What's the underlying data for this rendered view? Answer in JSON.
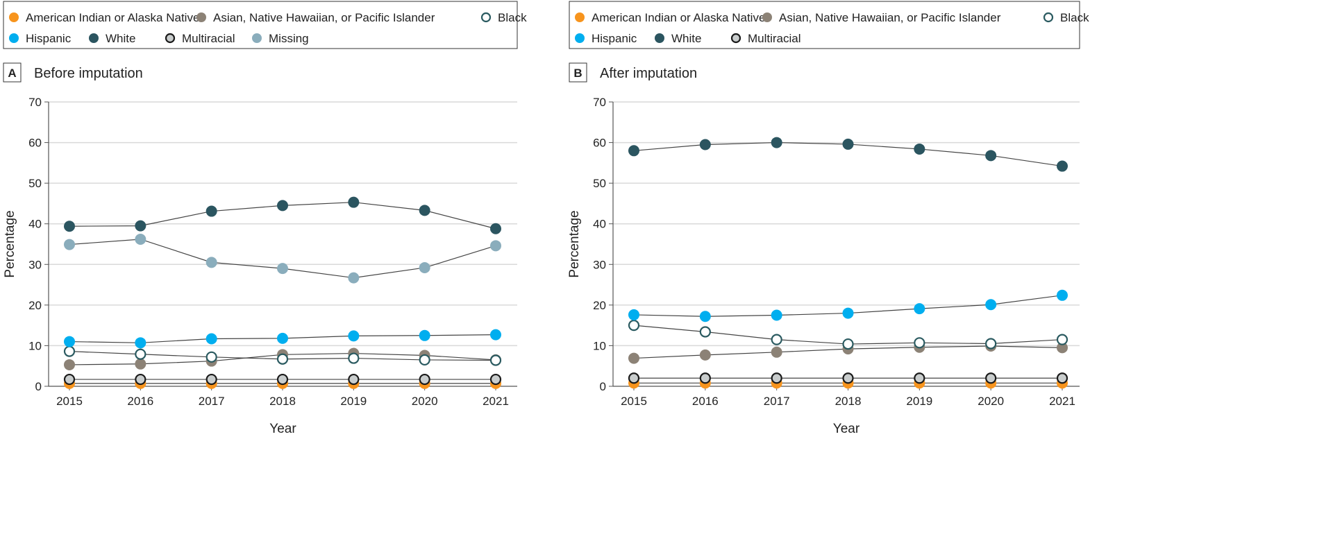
{
  "chart_data": [
    {
      "type": "line",
      "panel": "A",
      "title": "Before imputation",
      "xlabel": "Year",
      "ylabel": "Percentage",
      "x": [
        2015,
        2016,
        2017,
        2018,
        2019,
        2020,
        2021
      ],
      "ylim": [
        0,
        70
      ],
      "yticks": [
        0,
        10,
        20,
        30,
        40,
        50,
        60,
        70
      ],
      "grid": true,
      "legend_placement": "top",
      "series": [
        {
          "name": "American Indian or Alaska Native",
          "color": "#F7941D",
          "marker": "filled",
          "values": [
            0.7,
            0.7,
            0.7,
            0.7,
            0.7,
            0.7,
            0.7
          ]
        },
        {
          "name": "Asian, Native Hawaiian, or Pacific Islander",
          "color": "#8C8276",
          "marker": "filled",
          "values": [
            5.3,
            5.5,
            6.2,
            7.8,
            8.1,
            7.6,
            6.5
          ]
        },
        {
          "name": "Black",
          "color": "#2A5A60",
          "marker": "open",
          "values": [
            8.6,
            7.9,
            7.2,
            6.7,
            6.9,
            6.5,
            6.4
          ]
        },
        {
          "name": "Hispanic",
          "color": "#00AEEF",
          "marker": "filled",
          "values": [
            11.0,
            10.7,
            11.7,
            11.8,
            12.4,
            12.5,
            12.7
          ]
        },
        {
          "name": "White",
          "color": "#2B5560",
          "marker": "filled",
          "values": [
            39.4,
            39.5,
            43.1,
            44.5,
            45.3,
            43.3,
            38.8
          ]
        },
        {
          "name": "Multiracial",
          "color": "#C9CDCD",
          "marker": "outlined",
          "values": [
            1.7,
            1.7,
            1.7,
            1.7,
            1.7,
            1.7,
            1.7
          ]
        },
        {
          "name": "Missing",
          "color": "#8AADBC",
          "marker": "filled",
          "values": [
            34.9,
            36.2,
            30.5,
            29.0,
            26.7,
            29.2,
            34.6
          ]
        }
      ]
    },
    {
      "type": "line",
      "panel": "B",
      "title": "After imputation",
      "xlabel": "Year",
      "ylabel": "Percentage",
      "x": [
        2015,
        2016,
        2017,
        2018,
        2019,
        2020,
        2021
      ],
      "ylim": [
        0,
        70
      ],
      "yticks": [
        0,
        10,
        20,
        30,
        40,
        50,
        60,
        70
      ],
      "grid": true,
      "legend_placement": "top",
      "series": [
        {
          "name": "American Indian or Alaska Native",
          "color": "#F7941D",
          "marker": "filled",
          "values": [
            0.8,
            0.8,
            0.8,
            0.8,
            0.8,
            0.8,
            0.8
          ]
        },
        {
          "name": "Asian, Native Hawaiian, or Pacific Islander",
          "color": "#8C8276",
          "marker": "filled",
          "values": [
            6.9,
            7.7,
            8.4,
            9.2,
            9.6,
            9.9,
            9.5
          ]
        },
        {
          "name": "Black",
          "color": "#2A5A60",
          "marker": "open",
          "values": [
            15.0,
            13.4,
            11.5,
            10.4,
            10.7,
            10.5,
            11.5
          ]
        },
        {
          "name": "Hispanic",
          "color": "#00AEEF",
          "marker": "filled",
          "values": [
            17.6,
            17.2,
            17.5,
            18.0,
            19.1,
            20.1,
            22.4
          ]
        },
        {
          "name": "White",
          "color": "#2B5560",
          "marker": "filled",
          "values": [
            58.0,
            59.5,
            60.0,
            59.6,
            58.4,
            56.8,
            54.2
          ]
        },
        {
          "name": "Multiracial",
          "color": "#C9CDCD",
          "marker": "outlined",
          "values": [
            2.0,
            2.0,
            2.0,
            2.0,
            2.0,
            2.0,
            2.0
          ]
        }
      ]
    }
  ]
}
